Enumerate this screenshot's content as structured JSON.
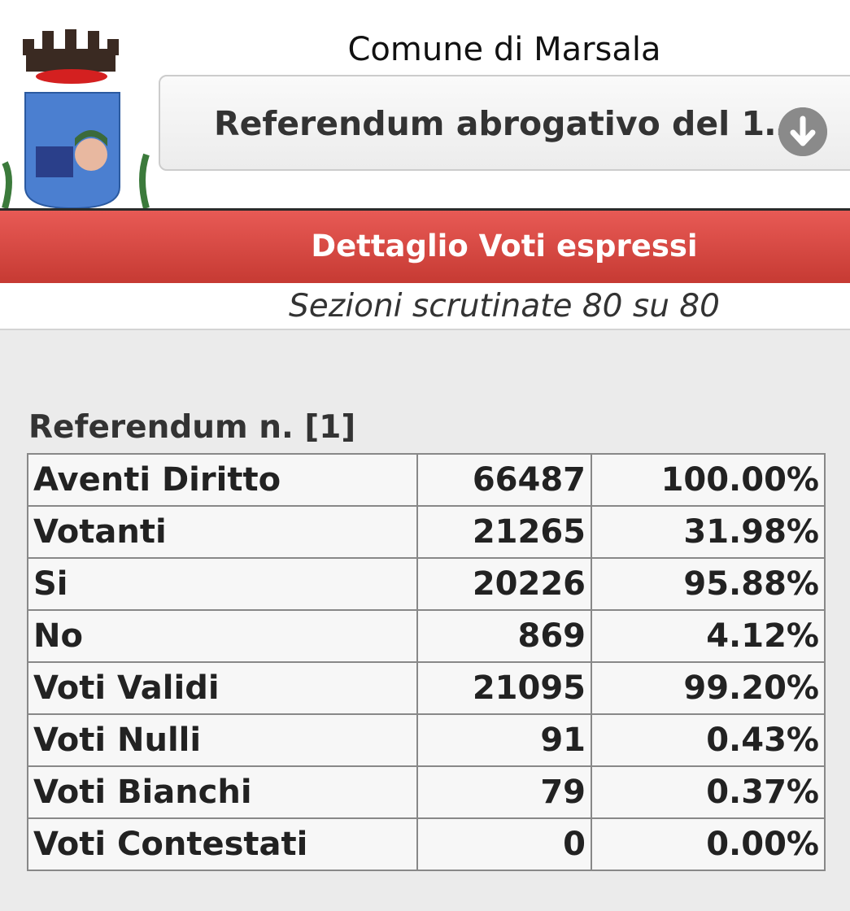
{
  "header": {
    "comune": "Comune di Marsala",
    "select_value": "Referendum abrogativo del 1…",
    "select_icon": "arrow-down-circle-icon"
  },
  "section_title": "Dettaglio Voti espressi",
  "subtitle": "Sezioni scrutinate 80 su 80",
  "referendum": {
    "title": "Referendum n. [1]",
    "rows": [
      {
        "label": "Aventi Diritto",
        "count": "66487",
        "percent": "100.00%"
      },
      {
        "label": "Votanti",
        "count": "21265",
        "percent": "31.98%"
      },
      {
        "label": "Si",
        "count": "20226",
        "percent": "95.88%"
      },
      {
        "label": "No",
        "count": "869",
        "percent": "4.12%"
      },
      {
        "label": "Voti Validi",
        "count": "21095",
        "percent": "99.20%"
      },
      {
        "label": "Voti Nulli",
        "count": "91",
        "percent": "0.43%"
      },
      {
        "label": "Voti Bianchi",
        "count": "79",
        "percent": "0.37%"
      },
      {
        "label": "Voti Contestati",
        "count": "0",
        "percent": "0.00%"
      }
    ]
  },
  "colors": {
    "accent_red": "#d9463f"
  }
}
